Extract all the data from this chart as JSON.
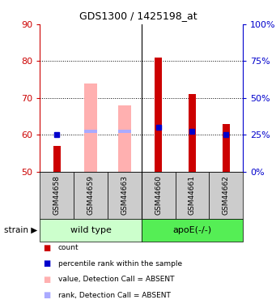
{
  "title": "GDS1300 / 1425198_at",
  "samples": [
    "GSM44658",
    "GSM44659",
    "GSM44663",
    "GSM44660",
    "GSM44661",
    "GSM44662"
  ],
  "ylim": [
    50,
    90
  ],
  "y_ticks_left": [
    50,
    60,
    70,
    80,
    90
  ],
  "y_ticks_right": [
    0,
    25,
    50,
    75,
    100
  ],
  "y_right_positions": [
    50,
    60,
    70,
    80,
    90
  ],
  "red_bar_top": [
    57,
    50,
    50,
    81,
    71,
    63
  ],
  "pink_bar_top": [
    50,
    74,
    68,
    50,
    50,
    50
  ],
  "blue_square_y": [
    60,
    61,
    61,
    62,
    61,
    60
  ],
  "blue_square_present": [
    true,
    false,
    false,
    true,
    true,
    true
  ],
  "light_blue_y": [
    null,
    61,
    61,
    null,
    null,
    null
  ],
  "absent_samples": [
    false,
    true,
    true,
    false,
    false,
    false
  ],
  "color_red": "#cc0000",
  "color_pink": "#ffb0b0",
  "color_blue": "#0000cc",
  "color_light_blue": "#aaaaff",
  "color_wildtype_bg": "#ccffcc",
  "color_apoe_bg": "#55ee55",
  "color_sample_bg": "#cccccc",
  "left_axis_color": "#cc0000",
  "right_axis_color": "#0000cc",
  "legend_items": [
    {
      "label": "count",
      "color": "#cc0000"
    },
    {
      "label": "percentile rank within the sample",
      "color": "#0000cc"
    },
    {
      "label": "value, Detection Call = ABSENT",
      "color": "#ffb0b0"
    },
    {
      "label": "rank, Detection Call = ABSENT",
      "color": "#aaaaff"
    }
  ],
  "group_labels": [
    "wild type",
    "apoE(-/-)"
  ]
}
